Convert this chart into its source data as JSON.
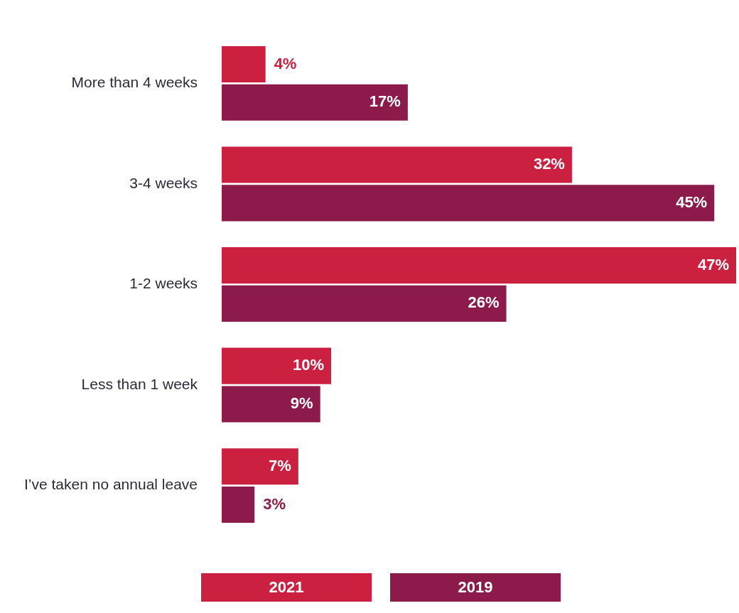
{
  "chart_data": {
    "type": "bar",
    "orientation": "horizontal",
    "legend": "bottom",
    "categories": [
      "More than 4 weeks",
      "3-4 weeks",
      "1-2 weeks",
      "Less than 1 week",
      "I’ve taken no annual leave"
    ],
    "series": [
      {
        "name": "2021",
        "color": "#cc2040",
        "values": [
          4,
          32,
          47,
          10,
          7
        ],
        "value_labels": [
          "4%",
          "32%",
          "47%",
          "10%",
          "7%"
        ]
      },
      {
        "name": "2019",
        "color": "#8c1a4a",
        "values": [
          17,
          45,
          26,
          9,
          3
        ],
        "value_labels": [
          "17%",
          "45%",
          "26%",
          "9%",
          "3%"
        ]
      }
    ]
  }
}
